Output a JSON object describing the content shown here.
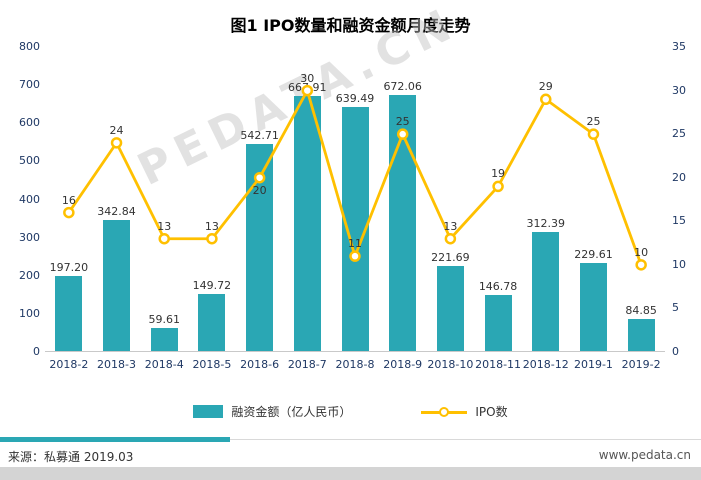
{
  "title": "图1 IPO数量和融资金额月度走势",
  "watermark": "PEDATA.CN",
  "legend": {
    "bar_label": "融资金额（亿人民币）",
    "line_label": "IPO数"
  },
  "footer": {
    "source": "来源：私募通 2019.03",
    "site": "www.pedata.cn"
  },
  "colors": {
    "bar": "#2aa7b4",
    "line": "#ffc000",
    "axis_text": "#1f3864",
    "label_text": "#333333"
  },
  "chart_data": {
    "type": "bar",
    "subtype": "bar+line dual axis",
    "title": "图1 IPO数量和融资金额月度走势",
    "categories": [
      "2018-2",
      "2018-3",
      "2018-4",
      "2018-5",
      "2018-6",
      "2018-7",
      "2018-8",
      "2018-9",
      "2018-10",
      "2018-11",
      "2018-12",
      "2019-1",
      "2019-2"
    ],
    "series": [
      {
        "name": "融资金额（亿人民币）",
        "type": "bar",
        "axis": "left",
        "values": [
          197.2,
          342.84,
          59.61,
          149.72,
          542.71,
          667.91,
          639.49,
          672.06,
          221.69,
          146.78,
          312.39,
          229.61,
          84.85
        ],
        "labels": [
          "197.20",
          "342.84",
          "59.61",
          "149.72",
          "542.71",
          "667.91",
          "639.49",
          "672.06",
          "221.69",
          "146.78",
          "312.39",
          "229.61",
          "84.85"
        ]
      },
      {
        "name": "IPO数",
        "type": "line",
        "axis": "right",
        "values": [
          16,
          24,
          13,
          13,
          20,
          30,
          11,
          25,
          13,
          19,
          29,
          25,
          10
        ],
        "labels": [
          "16",
          "24",
          "13",
          "13",
          "20",
          "30",
          "11",
          "25",
          "13",
          "19",
          "29",
          "25",
          "10"
        ]
      }
    ],
    "left_axis": {
      "min": 0,
      "max": 800,
      "step": 100
    },
    "right_axis": {
      "min": 0,
      "max": 35,
      "step": 5
    },
    "grid": false,
    "legend_position": "bottom"
  }
}
